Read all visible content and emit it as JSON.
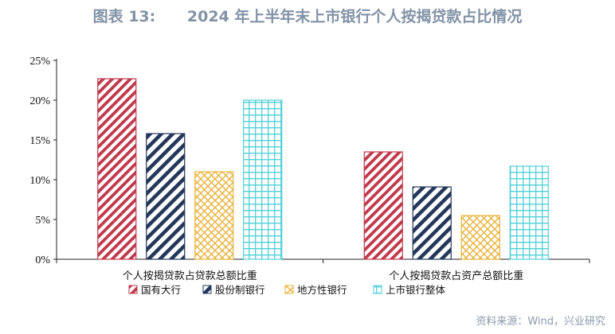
{
  "page": {
    "title": "图表 13:      2024 年上半年末上市银行个人按揭贷款占比情况",
    "source": "资料来源：Wind，兴业研究"
  },
  "chart_data": {
    "type": "bar",
    "title": "2024 年上半年末上市银行个人按揭贷款占比情况",
    "categories": [
      "个人按揭贷款占贷款总额比重",
      "个人按揭贷款占资产总额比重"
    ],
    "series": [
      {
        "name": "国有大行",
        "values": [
          22.7,
          13.5
        ],
        "color": "#c0394b",
        "pattern": "diag-dense"
      },
      {
        "name": "股份制银行",
        "values": [
          15.8,
          9.1
        ],
        "color": "#24375a",
        "pattern": "diag-wide"
      },
      {
        "name": "地方性银行",
        "values": [
          11.0,
          5.5
        ],
        "color": "#e8b33c",
        "pattern": "crosshatch"
      },
      {
        "name": "上市银行整体",
        "values": [
          20.0,
          11.7
        ],
        "color": "#4fd0d8",
        "pattern": "grid"
      }
    ],
    "yticks": [
      "0%",
      "5%",
      "10%",
      "15%",
      "20%",
      "25%"
    ],
    "ylim": [
      0,
      25
    ],
    "xlabel": "",
    "ylabel": "",
    "legend_position": "bottom",
    "grid": false
  }
}
